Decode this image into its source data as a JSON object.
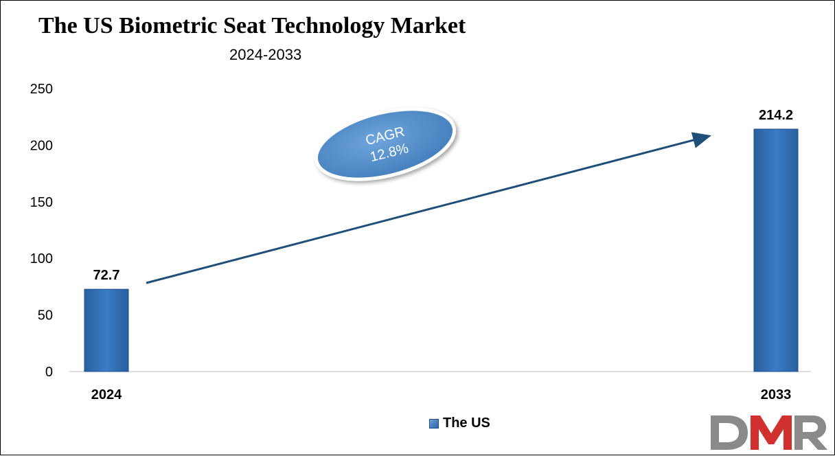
{
  "chart_data": {
    "type": "bar",
    "title": "The US Biometric Seat Technology Market",
    "subtitle": "2024-2033",
    "categories": [
      "2024",
      "2033"
    ],
    "series": [
      {
        "name": "The US",
        "values": [
          72.7,
          214.2
        ]
      }
    ],
    "ylim": [
      0,
      250
    ],
    "yticks": [
      "0",
      "50",
      "100",
      "150",
      "200",
      "250"
    ],
    "data_labels": [
      "72.7",
      "214.2"
    ],
    "annotation": {
      "line1": "CAGR",
      "line2": "12.8%"
    },
    "legend_position": "bottom",
    "grid": false,
    "bar_color": "#2e6db4"
  },
  "logo": {
    "text": "DMR",
    "colors": [
      "#8a8a8a",
      "#d0302e"
    ]
  }
}
